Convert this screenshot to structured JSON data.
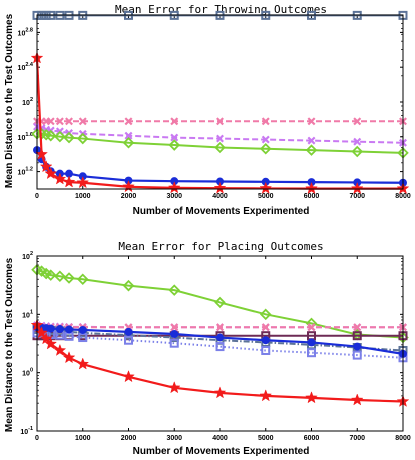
{
  "chart_data": [
    {
      "type": "line",
      "title": "Mean Error for Throwing Outcomes",
      "xlabel": "Number of Movements Experimented",
      "ylabel": "Mean Distance to the Test Outcomes",
      "xlim": [
        0,
        8000
      ],
      "ylim": [
        10,
        1000
      ],
      "yscale": "log",
      "xticks": [
        0,
        1000,
        2000,
        3000,
        4000,
        5000,
        6000,
        7000,
        8000
      ],
      "yticks": [
        {
          "value": 15.85,
          "base": "10",
          "exp": "1.2"
        },
        {
          "value": 39.81,
          "base": "10",
          "exp": "1.6"
        },
        {
          "value": 100,
          "base": "10",
          "exp": "2"
        },
        {
          "value": 251.2,
          "base": "10",
          "exp": "2.4"
        },
        {
          "value": 631,
          "base": "10",
          "exp": "2.8"
        }
      ],
      "grid": false,
      "legend": "none",
      "series": [
        {
          "color": "#5c7398",
          "marker": "square",
          "dash": "solid",
          "x": [
            0,
            100,
            200,
            300,
            500,
            700,
            1000,
            2000,
            3000,
            4000,
            5000,
            6000,
            7000,
            8000
          ],
          "y": [
            990,
            990,
            990,
            990,
            990,
            990,
            990,
            990,
            990,
            990,
            990,
            990,
            990,
            990
          ]
        },
        {
          "color": "#f07aa8",
          "marker": "x",
          "dash": "dashed",
          "x": [
            0,
            100,
            200,
            300,
            500,
            700,
            1000,
            2000,
            3000,
            4000,
            5000,
            6000,
            7000,
            8000
          ],
          "y": [
            60,
            60,
            60,
            60,
            60,
            60,
            60,
            60,
            60,
            60,
            60,
            60,
            60,
            60
          ]
        },
        {
          "color": "#c979f2",
          "marker": "x",
          "dash": "dashed",
          "x": [
            0,
            100,
            200,
            300,
            500,
            700,
            1000,
            2000,
            3000,
            4000,
            5000,
            6000,
            7000,
            8000
          ],
          "y": [
            52,
            50,
            48,
            47,
            46,
            44,
            43,
            41,
            39,
            38,
            37,
            36,
            35,
            34
          ]
        },
        {
          "color": "#7ed136",
          "marker": "diamond",
          "dash": "solid",
          "x": [
            0,
            100,
            200,
            300,
            500,
            700,
            1000,
            2000,
            3000,
            4000,
            5000,
            6000,
            7000,
            8000
          ],
          "y": [
            43,
            43,
            42,
            41,
            40,
            39,
            38,
            34,
            32,
            30,
            29,
            28,
            27,
            26
          ]
        },
        {
          "color": "#1a2dd8",
          "marker": "circle",
          "dash": "solid",
          "x": [
            0,
            100,
            200,
            300,
            500,
            700,
            1000,
            2000,
            3000,
            4000,
            5000,
            6000,
            7000,
            8000
          ],
          "y": [
            28,
            22,
            18,
            16,
            15,
            15,
            14,
            12.5,
            12.3,
            12.2,
            12.1,
            12,
            11.9,
            11.8
          ]
        },
        {
          "color": "#f21b1b",
          "marker": "star",
          "dash": "solid",
          "x": [
            0,
            100,
            200,
            300,
            500,
            700,
            1000,
            2000,
            3000,
            4000,
            5000,
            6000,
            7000,
            8000
          ],
          "y": [
            320,
            25,
            18,
            15,
            13,
            12,
            11.8,
            10.6,
            10.3,
            10.2,
            10.15,
            10.1,
            10.1,
            10.1
          ]
        }
      ]
    },
    {
      "type": "line",
      "title": "Mean Error for Placing Outcomes",
      "xlabel": "Number of Movements Experimented",
      "ylabel": "Mean Distance to the Test Outcomes",
      "xlim": [
        0,
        8000
      ],
      "ylim": [
        0.1,
        100
      ],
      "yscale": "log",
      "xticks": [
        0,
        1000,
        2000,
        3000,
        4000,
        5000,
        6000,
        7000,
        8000
      ],
      "yticks": [
        {
          "value": 0.1,
          "base": "10",
          "exp": "-1"
        },
        {
          "value": 1,
          "base": "10",
          "exp": "0"
        },
        {
          "value": 10,
          "base": "10",
          "exp": "1"
        },
        {
          "value": 100,
          "base": "10",
          "exp": "2"
        }
      ],
      "grid": false,
      "legend": "none",
      "series": [
        {
          "color": "#7ed136",
          "marker": "diamond",
          "dash": "solid",
          "x": [
            0,
            100,
            200,
            300,
            500,
            700,
            1000,
            2000,
            3000,
            4000,
            5000,
            6000,
            7000,
            8000
          ],
          "y": [
            58,
            55,
            50,
            47,
            45,
            42,
            40,
            31,
            26,
            16,
            10,
            7,
            4.5,
            4
          ]
        },
        {
          "color": "#c979f2",
          "marker": "x",
          "dash": "dashed",
          "x": [
            0,
            100,
            200,
            300,
            500,
            700,
            1000,
            2000,
            3000,
            4000,
            5000,
            6000,
            7000,
            8000
          ],
          "y": [
            6.5,
            6.4,
            6.3,
            6.2,
            6.2,
            6.1,
            6.1,
            6,
            6,
            6,
            6,
            6,
            6,
            6
          ]
        },
        {
          "color": "#f07aa8",
          "marker": "x",
          "dash": "dashed",
          "x": [
            0,
            100,
            200,
            300,
            500,
            700,
            1000,
            2000,
            3000,
            4000,
            5000,
            6000,
            7000,
            8000
          ],
          "y": [
            6,
            6,
            6,
            6,
            6,
            6,
            6,
            6,
            6,
            6,
            6,
            6,
            6,
            6
          ]
        },
        {
          "color": "#6d2a55",
          "marker": "square",
          "dash": "solid",
          "x": [
            0,
            100,
            200,
            300,
            500,
            700,
            1000,
            2000,
            3000,
            4000,
            5000,
            6000,
            7000,
            8000
          ],
          "y": [
            4.3,
            4.3,
            4.3,
            4.3,
            4.3,
            4.3,
            4.3,
            4.3,
            4.3,
            4.3,
            4.3,
            4.3,
            4.3,
            4.3
          ]
        },
        {
          "color": "#5c7398",
          "marker": "square",
          "dash": "dashdot",
          "x": [
            0,
            100,
            200,
            300,
            500,
            700,
            1000,
            2000,
            3000,
            4000,
            5000,
            6000,
            7000,
            8000
          ],
          "y": [
            5.5,
            5.5,
            5.4,
            5.3,
            5.2,
            5,
            4.8,
            4.4,
            4,
            3.6,
            3.3,
            3,
            2.7,
            2.4
          ]
        },
        {
          "color": "#7b80e8",
          "marker": "square",
          "dash": "dotted",
          "x": [
            0,
            100,
            200,
            300,
            500,
            700,
            1000,
            2000,
            3000,
            4000,
            5000,
            6000,
            7000,
            8000
          ],
          "y": [
            4.8,
            4.7,
            4.6,
            4.5,
            4.4,
            4.2,
            4,
            3.6,
            3.2,
            2.8,
            2.4,
            2.2,
            2,
            1.8
          ]
        },
        {
          "color": "#1a2dd8",
          "marker": "circle",
          "dash": "solid",
          "x": [
            0,
            100,
            200,
            300,
            500,
            700,
            1000,
            2000,
            3000,
            4000,
            5000,
            6000,
            7000,
            8000
          ],
          "y": [
            6,
            5.9,
            5.8,
            5.7,
            5.6,
            5.5,
            5.4,
            5,
            4.6,
            4,
            3.6,
            3.3,
            2.8,
            2.1
          ]
        },
        {
          "color": "#f21b1b",
          "marker": "star",
          "dash": "solid",
          "x": [
            0,
            100,
            200,
            300,
            500,
            700,
            1000,
            2000,
            3000,
            4000,
            5000,
            6000,
            7000,
            8000
          ],
          "y": [
            6.5,
            4.8,
            3.8,
            3.1,
            2.4,
            1.8,
            1.4,
            0.85,
            0.55,
            0.45,
            0.4,
            0.37,
            0.34,
            0.32
          ]
        }
      ]
    }
  ]
}
